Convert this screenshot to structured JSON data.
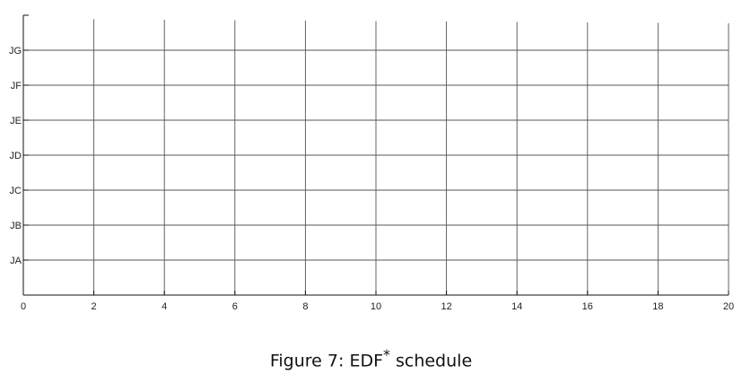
{
  "caption": {
    "label": "Figure 7:",
    "text": "EDF",
    "superscript": "*",
    "suffix": "schedule"
  },
  "chart_data": {
    "type": "line",
    "title": "",
    "xlabel": "",
    "ylabel": "",
    "xlim": [
      0,
      20
    ],
    "x_ticks": [
      0,
      2,
      4,
      6,
      8,
      10,
      12,
      14,
      16,
      18,
      20
    ],
    "x_tick_labels": [
      "0",
      "2",
      "4",
      "6",
      "8",
      "10",
      "12",
      "14",
      "16",
      "18",
      "20"
    ],
    "categories": [
      "JA",
      "JB",
      "JC",
      "JD",
      "JE",
      "JF",
      "JG"
    ],
    "grid": true,
    "series": []
  }
}
